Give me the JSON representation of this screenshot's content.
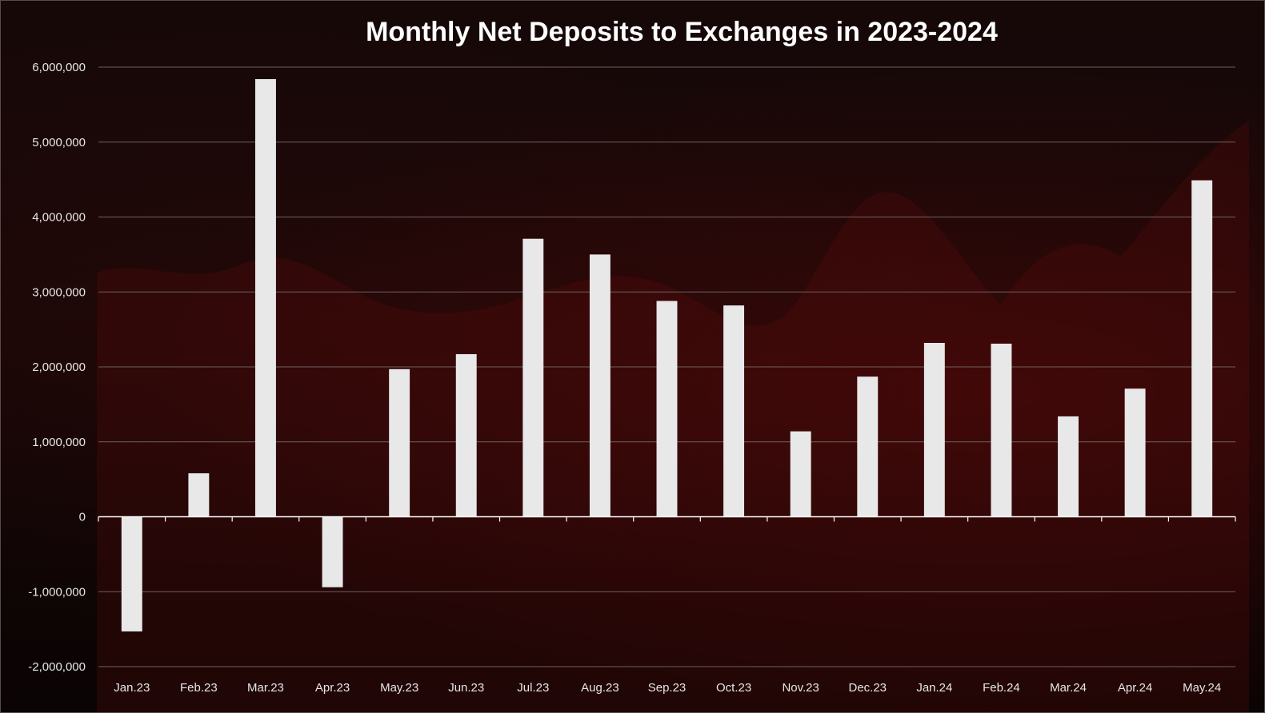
{
  "chart_data": {
    "type": "bar",
    "title": "Monthly Net Deposits to Exchanges in 2023-2024",
    "xlabel": "",
    "ylabel": "",
    "categories": [
      "Jan.23",
      "Feb.23",
      "Mar.23",
      "Apr.23",
      "May.23",
      "Jun.23",
      "Jul.23",
      "Aug.23",
      "Sep.23",
      "Oct.23",
      "Nov.23",
      "Dec.23",
      "Jan.24",
      "Feb.24",
      "Mar.24",
      "Apr.24",
      "May.24"
    ],
    "values": [
      -1530000,
      580000,
      5840000,
      -940000,
      1970000,
      2170000,
      3710000,
      3500000,
      2880000,
      2820000,
      1140000,
      1870000,
      2320000,
      2310000,
      1340000,
      1710000,
      4490000
    ],
    "ylim": [
      -2000000,
      6000000
    ],
    "yticks": [
      -2000000,
      -1000000,
      0,
      1000000,
      2000000,
      3000000,
      4000000,
      5000000,
      6000000
    ],
    "ytick_labels": [
      "-2,000,000",
      "-1,000,000",
      "0",
      "1,000,000",
      "2,000,000",
      "3,000,000",
      "4,000,000",
      "5,000,000",
      "6,000,000"
    ],
    "grid": true,
    "legend": "none",
    "bar_color": "#e8e8e8",
    "grid_color": "#6e6060"
  }
}
